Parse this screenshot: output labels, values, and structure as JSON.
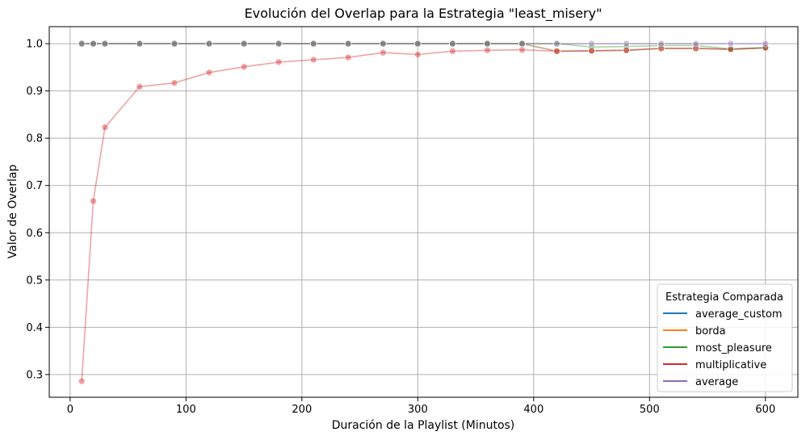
{
  "chart_data": {
    "type": "line",
    "title": "Evolución del Overlap para la Estrategia \"least_misery\"",
    "xlabel": "Duración de la Playlist (Minutos)",
    "ylabel": "Valor de Overlap",
    "xlim": [
      -18,
      628
    ],
    "ylim": [
      0.252,
      1.036
    ],
    "x_ticks": [
      0,
      100,
      200,
      300,
      400,
      500,
      600
    ],
    "x_tick_labels": [
      "0",
      "100",
      "200",
      "300",
      "400",
      "500",
      "600"
    ],
    "y_ticks": [
      0.3,
      0.4,
      0.5,
      0.6,
      0.7,
      0.8,
      0.9,
      1.0
    ],
    "y_tick_labels": [
      "0.3",
      "0.4",
      "0.5",
      "0.6",
      "0.7",
      "0.8",
      "0.9",
      "1.0"
    ],
    "grid": true,
    "legend_title": "Estrategia Comparada",
    "legend_position": "lower-right",
    "x": [
      10,
      20,
      30,
      60,
      90,
      120,
      150,
      180,
      210,
      240,
      270,
      300,
      330,
      360,
      390,
      420,
      450,
      480,
      510,
      540,
      570,
      600
    ],
    "series": [
      {
        "name": "average_custom",
        "color": "#1f77b4",
        "values": [
          1.0,
          1.0,
          1.0,
          1.0,
          1.0,
          1.0,
          1.0,
          1.0,
          1.0,
          1.0,
          1.0,
          1.0,
          1.0,
          1.0,
          1.0,
          0.984,
          0.985,
          0.986,
          0.99,
          0.99,
          0.988,
          0.991
        ]
      },
      {
        "name": "borda",
        "color": "#ff7f0e",
        "values": [
          1.0,
          1.0,
          1.0,
          1.0,
          1.0,
          1.0,
          1.0,
          1.0,
          1.0,
          1.0,
          1.0,
          1.0,
          1.0,
          1.0,
          1.0,
          0.984,
          0.985,
          0.986,
          0.99,
          0.99,
          0.988,
          0.991
        ]
      },
      {
        "name": "most_pleasure",
        "color": "#2ca02c",
        "values": [
          1.0,
          1.0,
          1.0,
          1.0,
          1.0,
          1.0,
          1.0,
          1.0,
          1.0,
          1.0,
          1.0,
          1.0,
          1.0,
          1.0,
          1.0,
          1.0,
          0.993,
          0.994,
          0.996,
          0.996,
          0.989,
          0.992
        ]
      },
      {
        "name": "multiplicative",
        "color": "#d62728",
        "values": [
          0.286,
          0.667,
          0.823,
          0.909,
          0.917,
          0.939,
          0.951,
          0.961,
          0.966,
          0.971,
          0.981,
          0.977,
          0.984,
          0.986,
          0.987,
          0.984,
          0.985,
          0.986,
          0.99,
          0.99,
          0.988,
          0.991
        ]
      },
      {
        "name": "average",
        "color": "#9467bd",
        "values": [
          1.0,
          1.0,
          1.0,
          1.0,
          1.0,
          1.0,
          1.0,
          1.0,
          1.0,
          1.0,
          1.0,
          1.0,
          1.0,
          1.0,
          1.0,
          1.0,
          1.0,
          1.0,
          1.0,
          1.0,
          1.0,
          1.0
        ]
      }
    ]
  }
}
